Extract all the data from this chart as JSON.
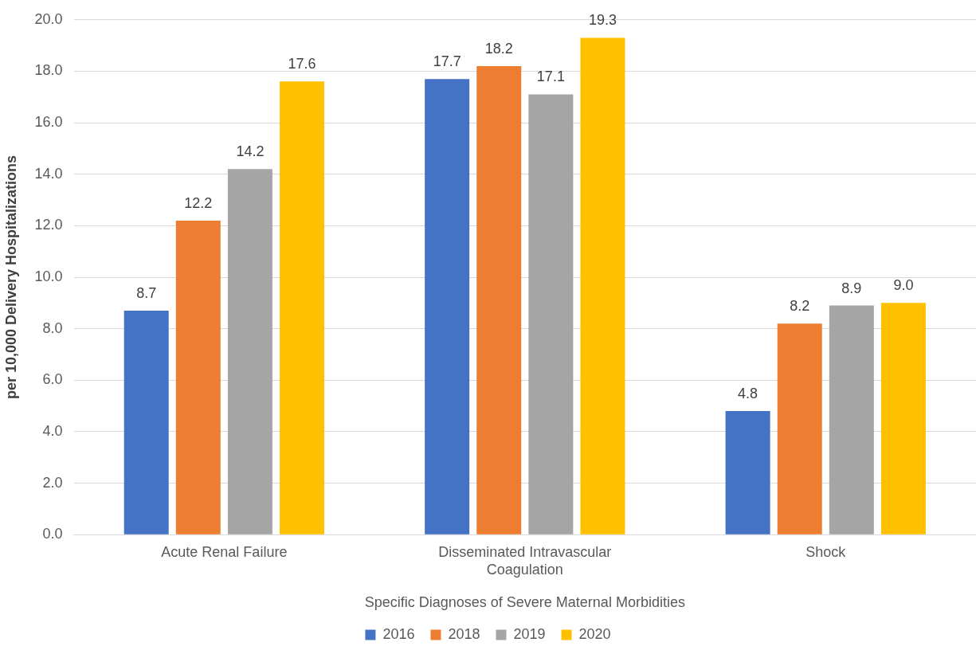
{
  "chart_data": {
    "type": "bar",
    "xlabel": "Specific Diagnoses of Severe Maternal Morbidities",
    "ylabel": "per 10,000 Delivery Hospitalizations",
    "categories": [
      "Acute Renal Failure",
      "Disseminated Intravascular Coagulation",
      "Shock"
    ],
    "series": [
      {
        "name": "2016",
        "color": "#4472c4",
        "values": [
          8.7,
          17.7,
          4.8
        ]
      },
      {
        "name": "2018",
        "color": "#ed7d31",
        "values": [
          12.2,
          18.2,
          8.2
        ]
      },
      {
        "name": "2019",
        "color": "#a5a5a5",
        "values": [
          14.2,
          17.1,
          8.9
        ]
      },
      {
        "name": "2020",
        "color": "#ffc000",
        "values": [
          17.6,
          19.3,
          9.0
        ]
      }
    ],
    "value_labels": [
      [
        "8.7",
        "17.7",
        "4.8"
      ],
      [
        "12.2",
        "18.2",
        "8.2"
      ],
      [
        "14.2",
        "17.1",
        "8.9"
      ],
      [
        "17.6",
        "19.3",
        "9.0"
      ]
    ],
    "ylim": [
      0,
      20
    ],
    "yticks": [
      {
        "value": 0,
        "label": "0.0"
      },
      {
        "value": 2,
        "label": "2.0"
      },
      {
        "value": 4,
        "label": "4.0"
      },
      {
        "value": 6,
        "label": "6.0"
      },
      {
        "value": 8,
        "label": "8.0"
      },
      {
        "value": 10,
        "label": "10.0"
      },
      {
        "value": 12,
        "label": "12.0"
      },
      {
        "value": 14,
        "label": "14.0"
      },
      {
        "value": 16,
        "label": "16.0"
      },
      {
        "value": 18,
        "label": "18.0"
      },
      {
        "value": 20,
        "label": "20.0"
      }
    ],
    "grid": "y",
    "legend": "bottom"
  }
}
